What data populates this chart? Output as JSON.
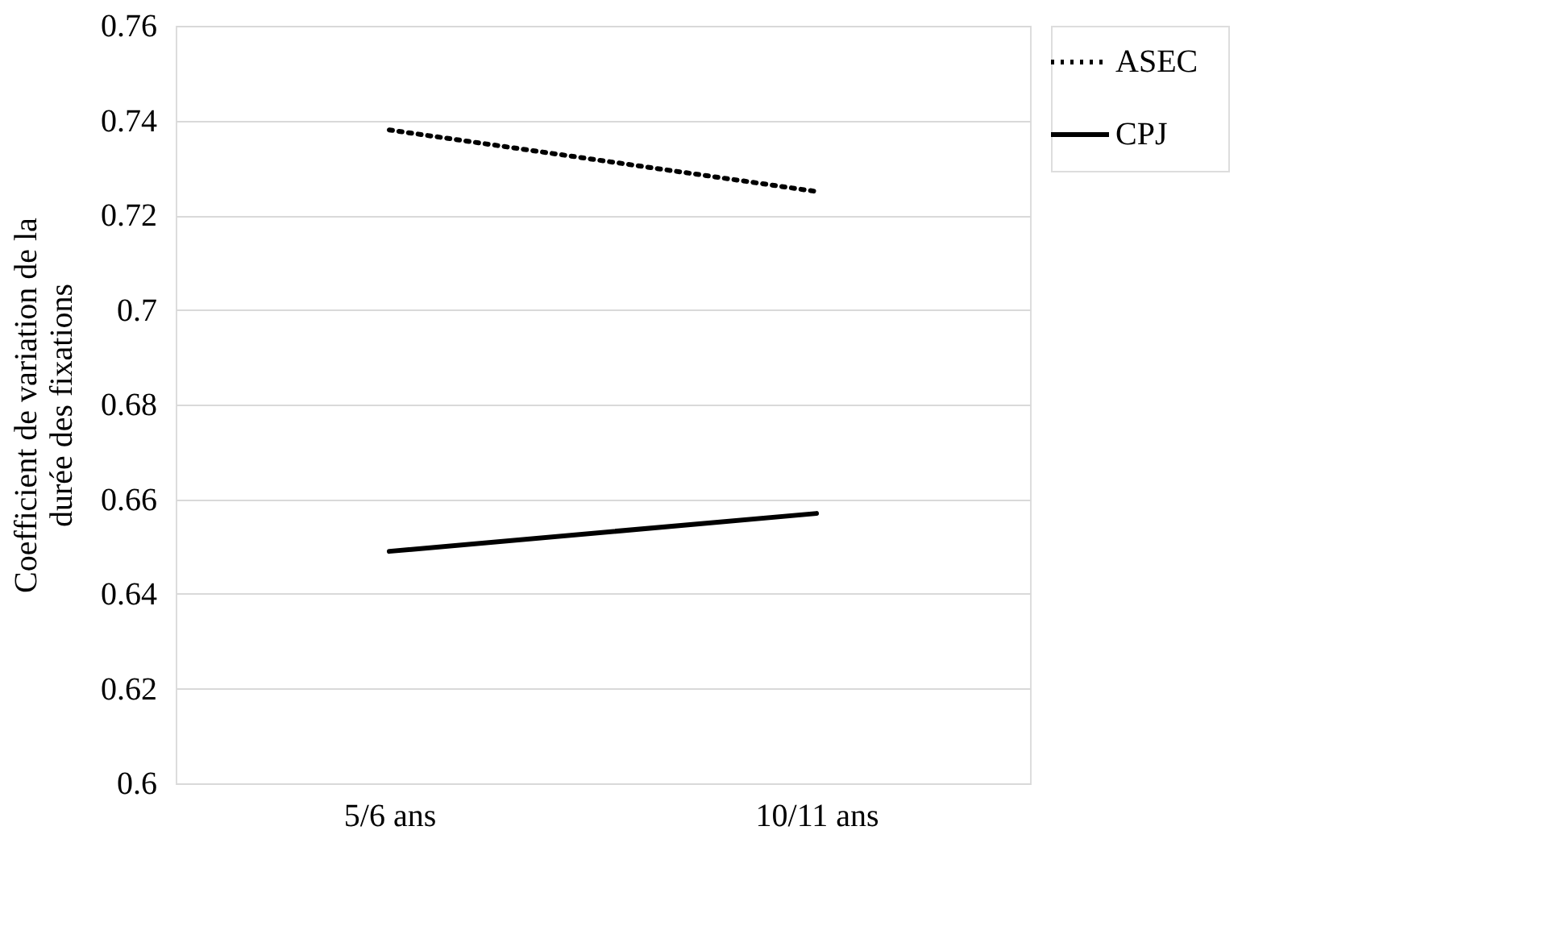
{
  "chart_data": {
    "type": "line",
    "ylabel": "Coefficient de variation de la durée des fixations",
    "categories": [
      "5/6 ans",
      "10/11 ans"
    ],
    "series": [
      {
        "name": "ASEC",
        "color": "#000000",
        "line_style": "dotted",
        "values": [
          0.738,
          0.725
        ]
      },
      {
        "name": "CPJ",
        "color": "#000000",
        "line_style": "solid",
        "values": [
          0.649,
          0.657
        ]
      }
    ],
    "ylim": [
      0.6,
      0.76
    ],
    "yticks": [
      {
        "value": 0.6,
        "label": "0.6"
      },
      0.62,
      0.64,
      0.66,
      0.68,
      {
        "value": 0.7,
        "label": "0.7"
      },
      0.72,
      0.74,
      0.76
    ],
    "grid": "y",
    "legend": "right",
    "marker": "none"
  }
}
